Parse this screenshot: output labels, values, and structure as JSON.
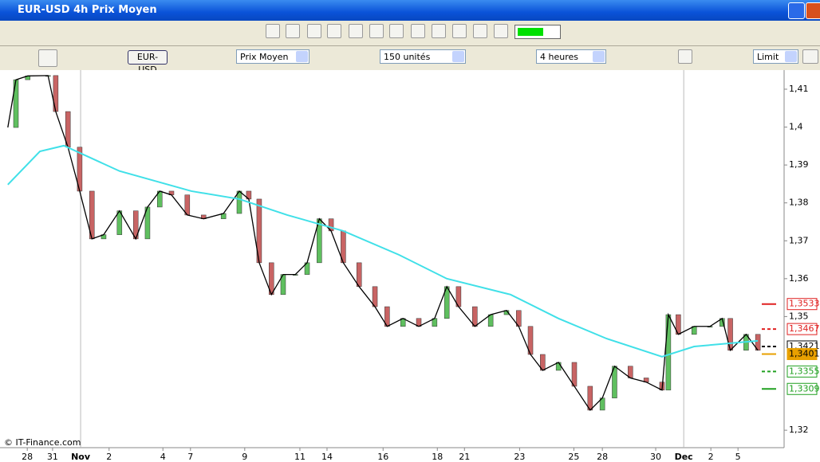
{
  "window": {
    "title": "EUR-USD 4h Prix Moyen"
  },
  "toolbar": {
    "symbol": "EUR-USD",
    "price_type": "Prix Moyen",
    "units": "150 unités",
    "period": "4 heures",
    "order_type": "Limit"
  },
  "chart_data": {
    "type": "candlestick",
    "x": [
      1.2,
      3.0,
      5.6,
      10.1,
      11.8,
      14.5,
      17.1,
      19.8,
      22.4,
      25.9,
      29.5,
      32.1,
      34.8,
      37.4,
      40.9,
      44.5,
      48.9,
      52.4,
      54.5,
      56.8,
      59.5,
      62.1,
      64.8,
      67.4,
      70.1,
      72.7,
      75.4,
      78.9,
      82.4,
      85.1,
      88.6,
      92.1,
      95.6,
      98.3,
      100.9,
      104.5,
      108.0,
      111.5,
      114.2,
      116.8,
      119.5,
      123.0,
      126.5,
      130.0,
      132.7,
      135.4,
      138.9,
      142.4,
      145.9,
      147.3,
      149.5,
      153.0,
      156.5,
      159.2,
      161.0,
      164.5,
      167.1
    ],
    "values": [
      1.3999,
      1.4125,
      1.4135,
      1.4136,
      1.4041,
      1.3947,
      1.3831,
      1.3705,
      1.3716,
      1.3779,
      1.3705,
      1.3789,
      1.3831,
      1.3821,
      1.3768,
      1.3758,
      1.3772,
      1.3831,
      1.381,
      1.3642,
      1.3558,
      1.3611,
      1.3611,
      1.3642,
      1.3758,
      1.3726,
      1.3642,
      1.3579,
      1.3526,
      1.3474,
      1.3495,
      1.3474,
      1.3495,
      1.3579,
      1.3526,
      1.3474,
      1.3505,
      1.3516,
      1.3474,
      1.34,
      1.3358,
      1.3379,
      1.3316,
      1.3253,
      1.3285,
      1.3369,
      1.3338,
      1.3327,
      1.3306,
      1.3505,
      1.3453,
      1.3474,
      1.3474,
      1.3495,
      1.3411,
      1.3453,
      1.3411
    ],
    "ma_x": [
      1.2,
      8.3,
      13.6,
      25.9,
      41.8,
      52.4,
      63.0,
      75.4,
      87.7,
      98.3,
      112.4,
      123.0,
      133.6,
      145.9,
      153.0,
      167.1
    ],
    "ma_values": [
      1.3848,
      1.3936,
      1.3951,
      1.3884,
      1.3831,
      1.381,
      1.3768,
      1.3726,
      1.3663,
      1.36,
      1.3558,
      1.3495,
      1.3442,
      1.3394,
      1.3421,
      1.3436
    ],
    "up_color": "#5fbf5f",
    "down_color": "#c86464",
    "line_color": "#000000",
    "ma_color": "#40e0e8",
    "xlim": [
      0,
      172.9
    ],
    "ylim": [
      1.3154,
      1.4142
    ],
    "yticks": [
      {
        "value": 1.41,
        "label": "1,41"
      },
      {
        "value": 1.4,
        "label": "1,4"
      },
      {
        "value": 1.39,
        "label": "1,39"
      },
      {
        "value": 1.38,
        "label": "1,38"
      },
      {
        "value": 1.37,
        "label": "1,37"
      },
      {
        "value": 1.36,
        "label": "1,36"
      },
      {
        "value": 1.35,
        "label": "1,35"
      },
      {
        "value": 1.32,
        "label": "1,32"
      }
    ],
    "xticks": [
      {
        "value": 5.5,
        "label": "28"
      },
      {
        "value": 11.1,
        "label": "31"
      },
      {
        "value": 17.3,
        "label": "Nov"
      },
      {
        "value": 23.6,
        "label": "2"
      },
      {
        "value": 35.5,
        "label": "4"
      },
      {
        "value": 41.6,
        "label": "7"
      },
      {
        "value": 53.6,
        "label": "9"
      },
      {
        "value": 65.8,
        "label": "11"
      },
      {
        "value": 71.8,
        "label": "14"
      },
      {
        "value": 84.2,
        "label": "16"
      },
      {
        "value": 96.2,
        "label": "18"
      },
      {
        "value": 102.2,
        "label": "21"
      },
      {
        "value": 114.4,
        "label": "23"
      },
      {
        "value": 126.4,
        "label": "25"
      },
      {
        "value": 132.7,
        "label": "28"
      },
      {
        "value": 144.5,
        "label": "30"
      },
      {
        "value": 150.7,
        "label": "Dec"
      },
      {
        "value": 156.7,
        "label": "2"
      },
      {
        "value": 162.7,
        "label": "5"
      }
    ],
    "levels": [
      {
        "value": 1.3533,
        "label": "1,3533",
        "color": "#e02020",
        "dashed": false
      },
      {
        "value": 1.3467,
        "label": "1,3467",
        "color": "#e02020",
        "dashed": true
      },
      {
        "value": 1.3421,
        "label": "1,3421",
        "color": "#000000",
        "dashed": true
      },
      {
        "value": 1.3401,
        "label": "1,3401",
        "color": "#e8a000",
        "dashed": false
      },
      {
        "value": 1.3355,
        "label": "1,3355",
        "color": "#20a020",
        "dashed": true
      },
      {
        "value": 1.3309,
        "label": "1,3309",
        "color": "#20a020",
        "dashed": false
      }
    ],
    "copyright": "© IT-Finance.com"
  }
}
